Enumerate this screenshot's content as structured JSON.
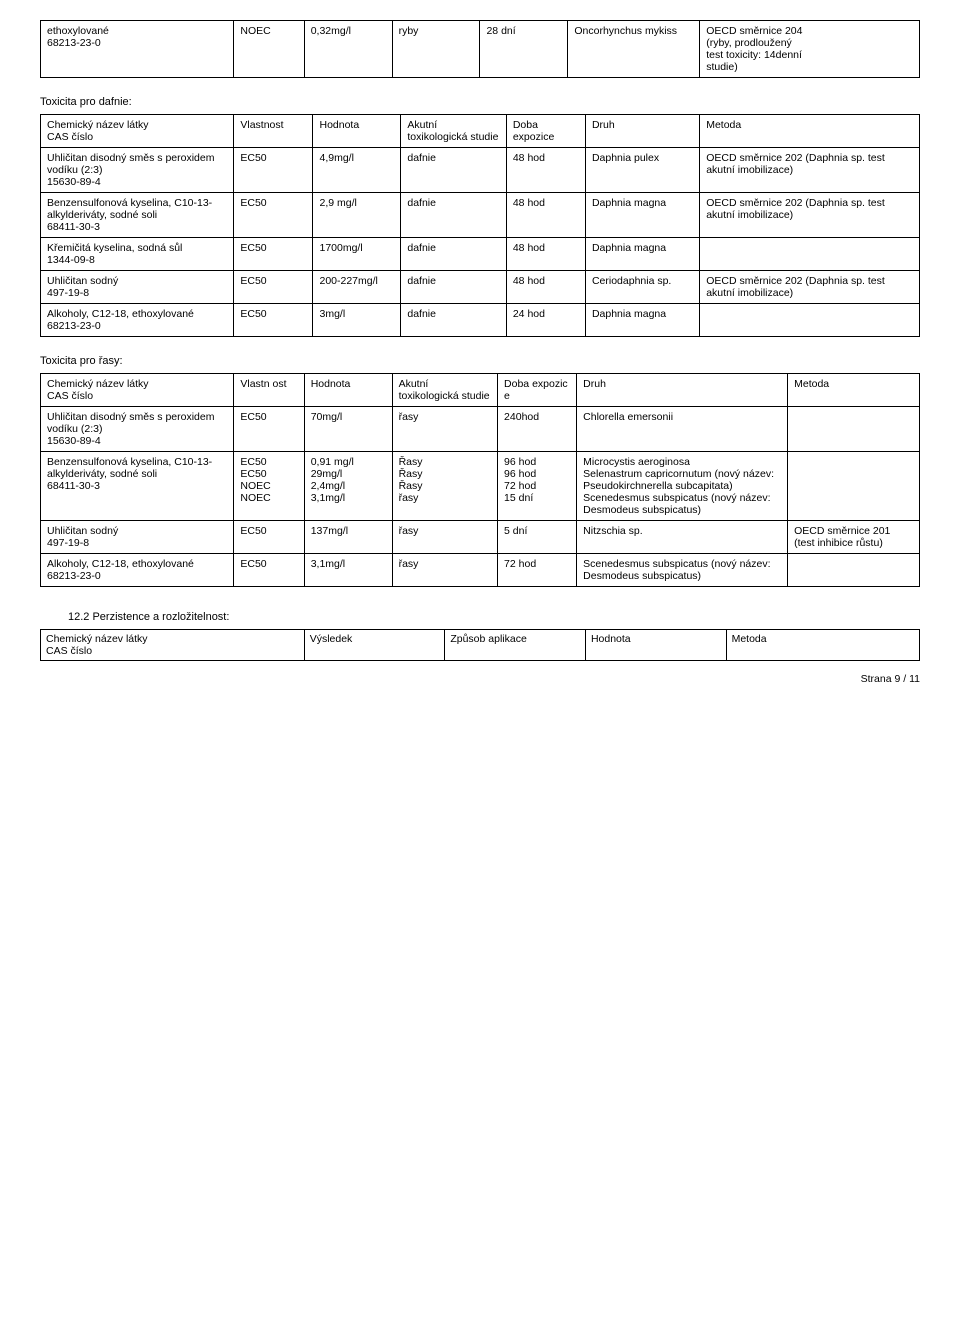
{
  "topTable": {
    "rows": [
      [
        "ethoxylované\n68213-23-0",
        "NOEC",
        "0,32mg/l",
        "ryby",
        "28 dní",
        "Oncorhynchus mykiss",
        "OECD směrnice 204\n(ryby, prodloužený\ntest toxicity: 14denní\nstudie)"
      ]
    ]
  },
  "daphniaSection": {
    "title": "Toxicita pro dafnie:",
    "headers": [
      "Chemický název látky\nCAS číslo",
      "Vlastnost",
      "Hodnota",
      "Akutní toxikologická studie",
      "Doba expozice",
      "Druh",
      "Metoda"
    ],
    "rows": [
      [
        "Uhličitan disodný směs s peroxidem vodíku (2:3)\n15630-89-4",
        "EC50",
        "4,9mg/l",
        "dafnie",
        "48 hod",
        "Daphnia pulex",
        "OECD směrnice 202 (Daphnia sp. test akutní imobilizace)"
      ],
      [
        "Benzensulfonová kyselina, C10-13-alkylderiváty, sodné soli\n68411-30-3",
        "EC50",
        "2,9 mg/l",
        "dafnie",
        "48 hod",
        "Daphnia magna",
        "OECD směrnice 202 (Daphnia sp. test akutní imobilizace)"
      ],
      [
        "Křemičitá kyselina, sodná sůl\n1344-09-8",
        "EC50",
        "1700mg/l",
        "dafnie",
        "48 hod",
        "Daphnia magna",
        ""
      ],
      [
        "Uhličitan sodný\n497-19-8",
        "EC50",
        "200-227mg/l",
        "dafnie",
        "48 hod",
        "Ceriodaphnia sp.",
        "OECD směrnice 202 (Daphnia sp. test akutní imobilizace)"
      ],
      [
        "Alkoholy, C12-18, ethoxylované\n68213-23-0",
        "EC50",
        "3mg/l",
        "dafnie",
        "24 hod",
        "Daphnia magna",
        ""
      ]
    ]
  },
  "algaeSection": {
    "title": "Toxicita pro řasy:",
    "headers": [
      "Chemický název látky\nCAS číslo",
      "Vlastn ost",
      "Hodnota",
      "Akutní toxikologická studie",
      "Doba expozic e",
      "Druh",
      "Metoda"
    ],
    "rows": [
      [
        "Uhličitan disodný směs s peroxidem vodíku (2:3)\n15630-89-4",
        "EC50",
        "70mg/l",
        "řasy",
        "240hod",
        "Chlorella emersonii",
        ""
      ],
      [
        "Benzensulfonová kyselina, C10-13-alkylderiváty, sodné soli\n68411-30-3",
        "EC50\nEC50\nNOEC\nNOEC",
        "0,91 mg/l\n29mg/l\n2,4mg/l\n3,1mg/l",
        "Řasy\nŘasy\nŘasy\nřasy",
        "96 hod\n96 hod\n72 hod\n15 dní",
        "Microcystis aeroginosa\nSelenastrum capricornutum (nový název: Pseudokirchnerella subcapitata)\nScenedesmus subspicatus (nový název: Desmodeus subspicatus)",
        ""
      ],
      [
        "Uhličitan sodný\n497-19-8",
        "EC50",
        "137mg/l",
        "řasy",
        "5 dní",
        "Nitzschia sp.",
        "OECD směrnice 201 (test inhibice růstu)"
      ],
      [
        "Alkoholy, C12-18, ethoxylované\n68213-23-0",
        "EC50",
        "3,1mg/l",
        "řasy",
        "72 hod",
        "Scenedesmus subspicatus (nový název: Desmodeus subspicatus)",
        ""
      ]
    ]
  },
  "persistence": {
    "heading": "12.2 Perzistence a rozložitelnost:",
    "headers": [
      "Chemický název látky\nCAS číslo",
      "Výsledek",
      "Způsob aplikace",
      "Hodnota",
      "Metoda"
    ]
  },
  "footer": "Strana 9 / 11",
  "colWidths": {
    "top": [
      "22%",
      "8%",
      "10%",
      "10%",
      "10%",
      "15%",
      "25%"
    ],
    "daphnia": [
      "22%",
      "9%",
      "10%",
      "12%",
      "9%",
      "13%",
      "25%"
    ],
    "algae": [
      "22%",
      "8%",
      "10%",
      "12%",
      "9%",
      "24%",
      "15%"
    ],
    "persist": [
      "30%",
      "16%",
      "16%",
      "16%",
      "22%"
    ]
  }
}
